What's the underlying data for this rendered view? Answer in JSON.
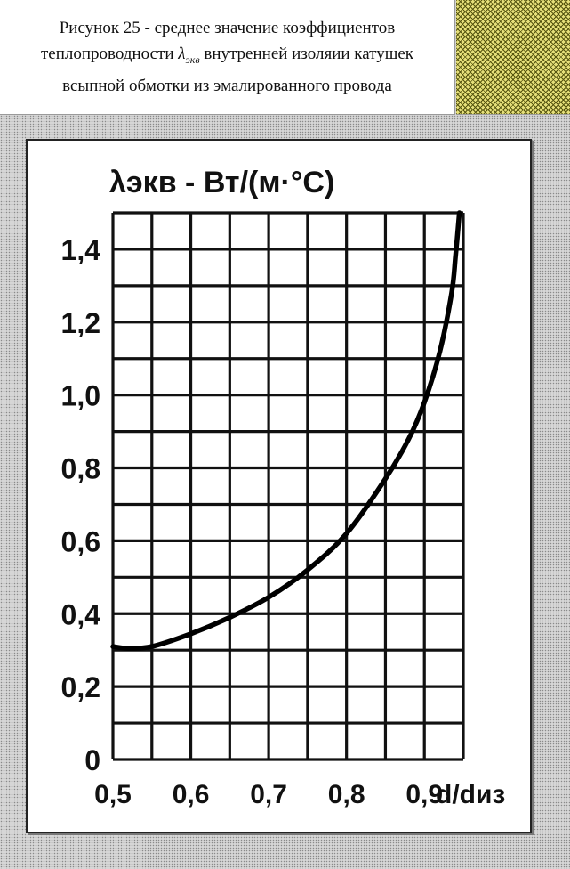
{
  "caption": {
    "line1": "Рисунок 25 - среднее значение коэффициентов",
    "line2_before": "теплопроводности ",
    "lambda_symbol": "λ",
    "lambda_sub": "экв",
    "line2_after": " внутренней изоляии катушек",
    "line3": "всыпной обмотки из эмалированного провода"
  },
  "chart_data": {
    "type": "line",
    "title": "",
    "ylabel": "λэкв - Вт/(м·°С)",
    "xlabel": "d/dиз",
    "xlim": [
      0.5,
      0.95
    ],
    "ylim": [
      0,
      1.5
    ],
    "x_ticks": [
      0.5,
      0.6,
      0.7,
      0.8,
      0.9
    ],
    "x_tick_labels": [
      "0,5",
      "0,6",
      "0,7",
      "0,8",
      "0,9"
    ],
    "y_ticks": [
      0,
      0.2,
      0.4,
      0.6,
      0.8,
      1.0,
      1.2,
      1.4
    ],
    "y_tick_labels": [
      "0",
      "0,2",
      "0,4",
      "0,6",
      "0,8",
      "1,0",
      "1,2",
      "1,4"
    ],
    "grid": true,
    "series": [
      {
        "name": "λэкв",
        "x": [
          0.5,
          0.52,
          0.55,
          0.6,
          0.65,
          0.7,
          0.75,
          0.8,
          0.85,
          0.88,
          0.9,
          0.92,
          0.935,
          0.94,
          0.945
        ],
        "y": [
          0.31,
          0.305,
          0.31,
          0.345,
          0.39,
          0.445,
          0.52,
          0.62,
          0.77,
          0.88,
          0.98,
          1.12,
          1.28,
          1.38,
          1.5
        ]
      }
    ]
  }
}
